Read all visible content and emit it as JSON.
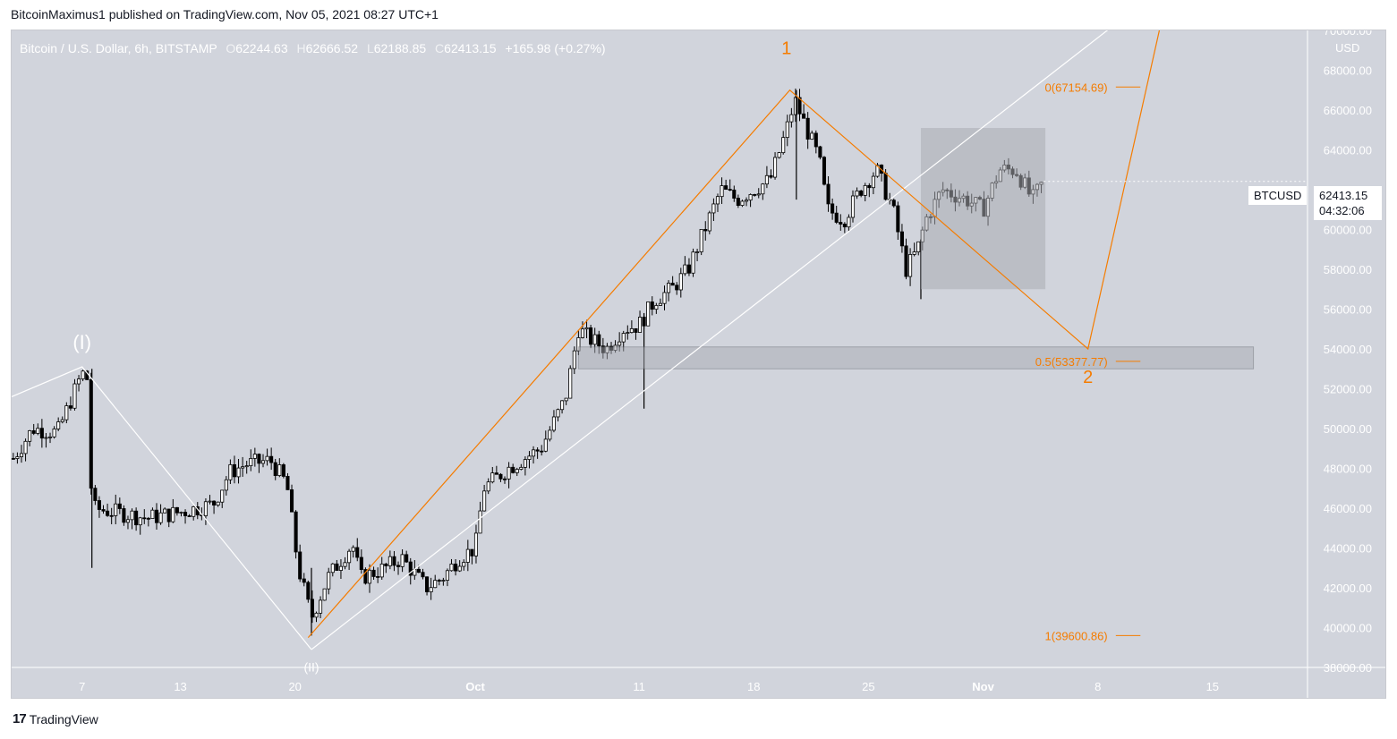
{
  "header": {
    "published": "BitcoinMaximus1 published on TradingView.com, Nov 05, 2021 08:27 UTC+1"
  },
  "legend": {
    "symbol": "Bitcoin / U.S. Dollar, 6h, BITSTAMP",
    "o_label": "O",
    "o": "62244.63",
    "h_label": "H",
    "h": "62666.52",
    "l_label": "L",
    "l": "62188.85",
    "c_label": "C",
    "c": "62413.15",
    "change": "+165.98 (+0.27%)"
  },
  "currency": "USD",
  "price_tag": {
    "symbol": "BTCUSD",
    "price": "62413.15",
    "countdown": "04:32:06"
  },
  "footer": {
    "brand": "TradingView",
    "logo": "17"
  },
  "annotations": {
    "wave_I": "(I)",
    "wave_II": "(II)",
    "wave_1": "1",
    "wave_2": "2",
    "fib_0": "0(67154.69)",
    "fib_05": "0.5(53377.77)",
    "fib_1": "1(39600.86)"
  },
  "colors": {
    "background": "#d1d4dc",
    "candle": "#000000",
    "orange": "#f57c00",
    "white_line": "#ffffff",
    "box": "#a9abb3"
  },
  "chart_data": {
    "type": "candlestick",
    "timeframe": "6h",
    "ylim": [
      38000,
      70000
    ],
    "y_ticks": [
      38000,
      40000,
      42000,
      44000,
      46000,
      48000,
      50000,
      52000,
      54000,
      56000,
      58000,
      60000,
      62000,
      64000,
      66000,
      68000,
      70000
    ],
    "y_tick_labels": [
      "38000.00",
      "40000.00",
      "42000.00",
      "44000.00",
      "46000.00",
      "48000.00",
      "50000.00",
      "52000.00",
      "54000.00",
      "56000.00",
      "58000.00",
      "60000.00",
      "62000.00",
      "64000.00",
      "66000.00",
      "68000.00",
      "70000.00"
    ],
    "x_tick_labels": [
      "7",
      "13",
      "20",
      "Oct",
      "11",
      "18",
      "25",
      "Nov",
      "8",
      "15"
    ],
    "x_tick_days": [
      7,
      13,
      20,
      31,
      41,
      48,
      55,
      62,
      69,
      76
    ],
    "x_range_days": [
      2.7,
      81.8
    ],
    "close_path": [
      [
        2.8,
        48500
      ],
      [
        4,
        50000
      ],
      [
        5.5,
        49800
      ],
      [
        7,
        52800
      ],
      [
        7.3,
        52500
      ],
      [
        7.6,
        46000
      ],
      [
        9,
        45800
      ],
      [
        11,
        45500
      ],
      [
        13,
        45800
      ],
      [
        15,
        46200
      ],
      [
        16,
        47800
      ],
      [
        17,
        48200
      ],
      [
        18.5,
        48400
      ],
      [
        19.5,
        47200
      ],
      [
        20.2,
        43000
      ],
      [
        21,
        40500
      ],
      [
        22,
        42500
      ],
      [
        23.5,
        44200
      ],
      [
        24,
        42500
      ],
      [
        25.5,
        43000
      ],
      [
        26.5,
        43500
      ],
      [
        28,
        42000
      ],
      [
        29,
        42500
      ],
      [
        30,
        43500
      ],
      [
        31,
        44000
      ],
      [
        31.5,
        47000
      ],
      [
        33,
        48000
      ],
      [
        35,
        49000
      ],
      [
        36.5,
        51500
      ],
      [
        37.3,
        55000
      ],
      [
        38,
        54500
      ],
      [
        39,
        54000
      ],
      [
        40,
        55000
      ],
      [
        41,
        55200
      ],
      [
        42,
        56500
      ],
      [
        43,
        57000
      ],
      [
        44,
        58000
      ],
      [
        45,
        60000
      ],
      [
        46,
        62000
      ],
      [
        47,
        61500
      ],
      [
        48,
        62000
      ],
      [
        49,
        62500
      ],
      [
        50,
        65000
      ],
      [
        50.5,
        66500
      ],
      [
        51,
        65500
      ],
      [
        52,
        63500
      ],
      [
        52.5,
        61000
      ],
      [
        53.5,
        60500
      ],
      [
        54.5,
        62000
      ],
      [
        55.5,
        63000
      ],
      [
        56.5,
        61000
      ],
      [
        57.3,
        58000
      ],
      [
        58,
        59000
      ],
      [
        58.5,
        60500
      ],
      [
        59.5,
        62000
      ],
      [
        61,
        61500
      ],
      [
        62,
        61000
      ],
      [
        63,
        63000
      ],
      [
        64,
        63000
      ],
      [
        65,
        61500
      ],
      [
        65.7,
        62413
      ]
    ],
    "wicks": [
      {
        "day": 7.6,
        "low": 43000,
        "high": 53000
      },
      {
        "day": 21,
        "low": 39600,
        "high": 43000
      },
      {
        "day": 41.3,
        "low": 51000,
        "high": 55800
      },
      {
        "day": 50.6,
        "low": 61500,
        "high": 67000
      },
      {
        "day": 58.2,
        "low": 56500,
        "high": 59500
      }
    ]
  }
}
